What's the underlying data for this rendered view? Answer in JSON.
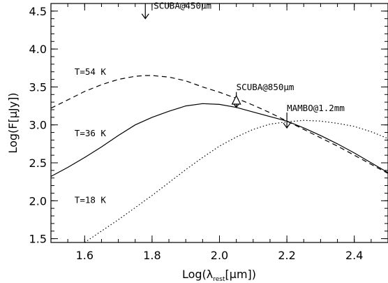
{
  "chart_data": {
    "type": "line",
    "xlabel": {
      "prefix": "Log(λ",
      "sub": "rest",
      "suffix": "[μm])"
    },
    "ylabel": "Log(F[μJy])",
    "xlim": [
      1.5,
      2.5
    ],
    "ylim": [
      1.45,
      4.6
    ],
    "x_ticks": [
      1.6,
      1.8,
      2.0,
      2.2,
      2.4
    ],
    "x_tick_labels": [
      "1.6",
      "1.8",
      "2.0",
      "2.2",
      "2.4"
    ],
    "y_ticks": [
      1.5,
      2.0,
      2.5,
      3.0,
      3.5,
      4.0,
      4.5
    ],
    "y_tick_labels": [
      "1.5",
      "2.0",
      "2.5",
      "3.0",
      "3.5",
      "4.0",
      "4.5"
    ],
    "grid": false,
    "series": [
      {
        "name": "T=54 K",
        "style": "dashed",
        "x": [
          1.5,
          1.55,
          1.6,
          1.65,
          1.7,
          1.75,
          1.78,
          1.8,
          1.85,
          1.9,
          1.95,
          2.0,
          2.05,
          2.1,
          2.15,
          2.2,
          2.25,
          2.3,
          2.35,
          2.4,
          2.45,
          2.5
        ],
        "y": [
          3.22,
          3.33,
          3.44,
          3.53,
          3.6,
          3.64,
          3.65,
          3.65,
          3.63,
          3.58,
          3.5,
          3.43,
          3.35,
          3.26,
          3.16,
          3.05,
          2.94,
          2.83,
          2.72,
          2.6,
          2.48,
          2.36
        ]
      },
      {
        "name": "T=36 K",
        "style": "solid",
        "x": [
          1.5,
          1.55,
          1.6,
          1.65,
          1.7,
          1.75,
          1.8,
          1.85,
          1.9,
          1.95,
          2.0,
          2.05,
          2.1,
          2.15,
          2.2,
          2.25,
          2.3,
          2.35,
          2.4,
          2.45,
          2.5
        ],
        "y": [
          2.32,
          2.44,
          2.57,
          2.71,
          2.86,
          3.0,
          3.1,
          3.18,
          3.25,
          3.28,
          3.27,
          3.23,
          3.17,
          3.11,
          3.05,
          2.96,
          2.86,
          2.75,
          2.63,
          2.5,
          2.37
        ]
      },
      {
        "name": "T=18 K",
        "style": "dotted",
        "x": [
          1.6,
          1.65,
          1.7,
          1.75,
          1.8,
          1.85,
          1.9,
          1.95,
          2.0,
          2.05,
          2.1,
          2.15,
          2.2,
          2.25,
          2.3,
          2.35,
          2.4,
          2.45,
          2.5
        ],
        "y": [
          1.45,
          1.6,
          1.75,
          1.91,
          2.07,
          2.24,
          2.41,
          2.57,
          2.72,
          2.84,
          2.94,
          3.01,
          3.04,
          3.06,
          3.05,
          3.02,
          2.98,
          2.91,
          2.82
        ]
      }
    ],
    "series_labels": [
      {
        "text": "T=54 K",
        "x": 1.57,
        "y": 3.66
      },
      {
        "text": "T=36 K",
        "x": 1.57,
        "y": 2.85
      },
      {
        "text": "T=18 K",
        "x": 1.57,
        "y": 1.97
      }
    ],
    "upper_limits": [
      {
        "label": "SCUBA@450μm",
        "x": 1.78,
        "y": 4.4
      },
      {
        "label": "SCUBA@850μm",
        "x": 2.05,
        "y": 3.23
      },
      {
        "label": "MAMBO@1.2mm",
        "x": 2.2,
        "y": 2.96
      }
    ],
    "detections": [
      {
        "x": 2.05,
        "y": 3.32
      }
    ]
  }
}
